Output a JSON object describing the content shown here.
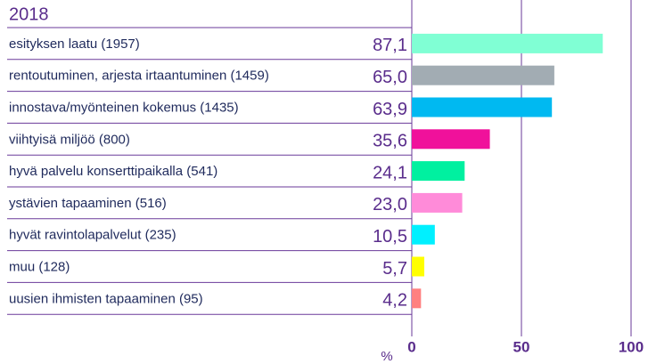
{
  "chart_data": {
    "type": "hbar",
    "title": "2018",
    "categories": [
      "esityksen laatu (1957)",
      "rentoutuminen, arjesta irtaantuminen (1459)",
      "innostava/myönteinen kokemus (1435)",
      "viihtyisä miljöö (800)",
      "hyvä palvelu konserttipaikalla (541)",
      "ystävien tapaaminen (516)",
      "hyvät ravintolapalvelut (235)",
      "muu (128)",
      "uusien ihmisten tapaaminen (95)"
    ],
    "values": [
      87.1,
      65.0,
      63.9,
      35.6,
      24.1,
      23.0,
      10.5,
      5.7,
      4.2
    ],
    "value_labels": [
      "87,1",
      "65,0",
      "63,9",
      "35,6",
      "24,1",
      "23,0",
      "10,5",
      "5,7",
      "4,2"
    ],
    "colors": [
      "#80ffd4",
      "#a2acb3",
      "#00b9f1",
      "#f0119b",
      "#00f0a0",
      "#ff8bd9",
      "#00f0ff",
      "#ffff00",
      "#ff8080"
    ],
    "xlabel": "%",
    "xlim": [
      0,
      100
    ],
    "xticks": [
      0,
      50,
      100
    ],
    "grid": true
  }
}
